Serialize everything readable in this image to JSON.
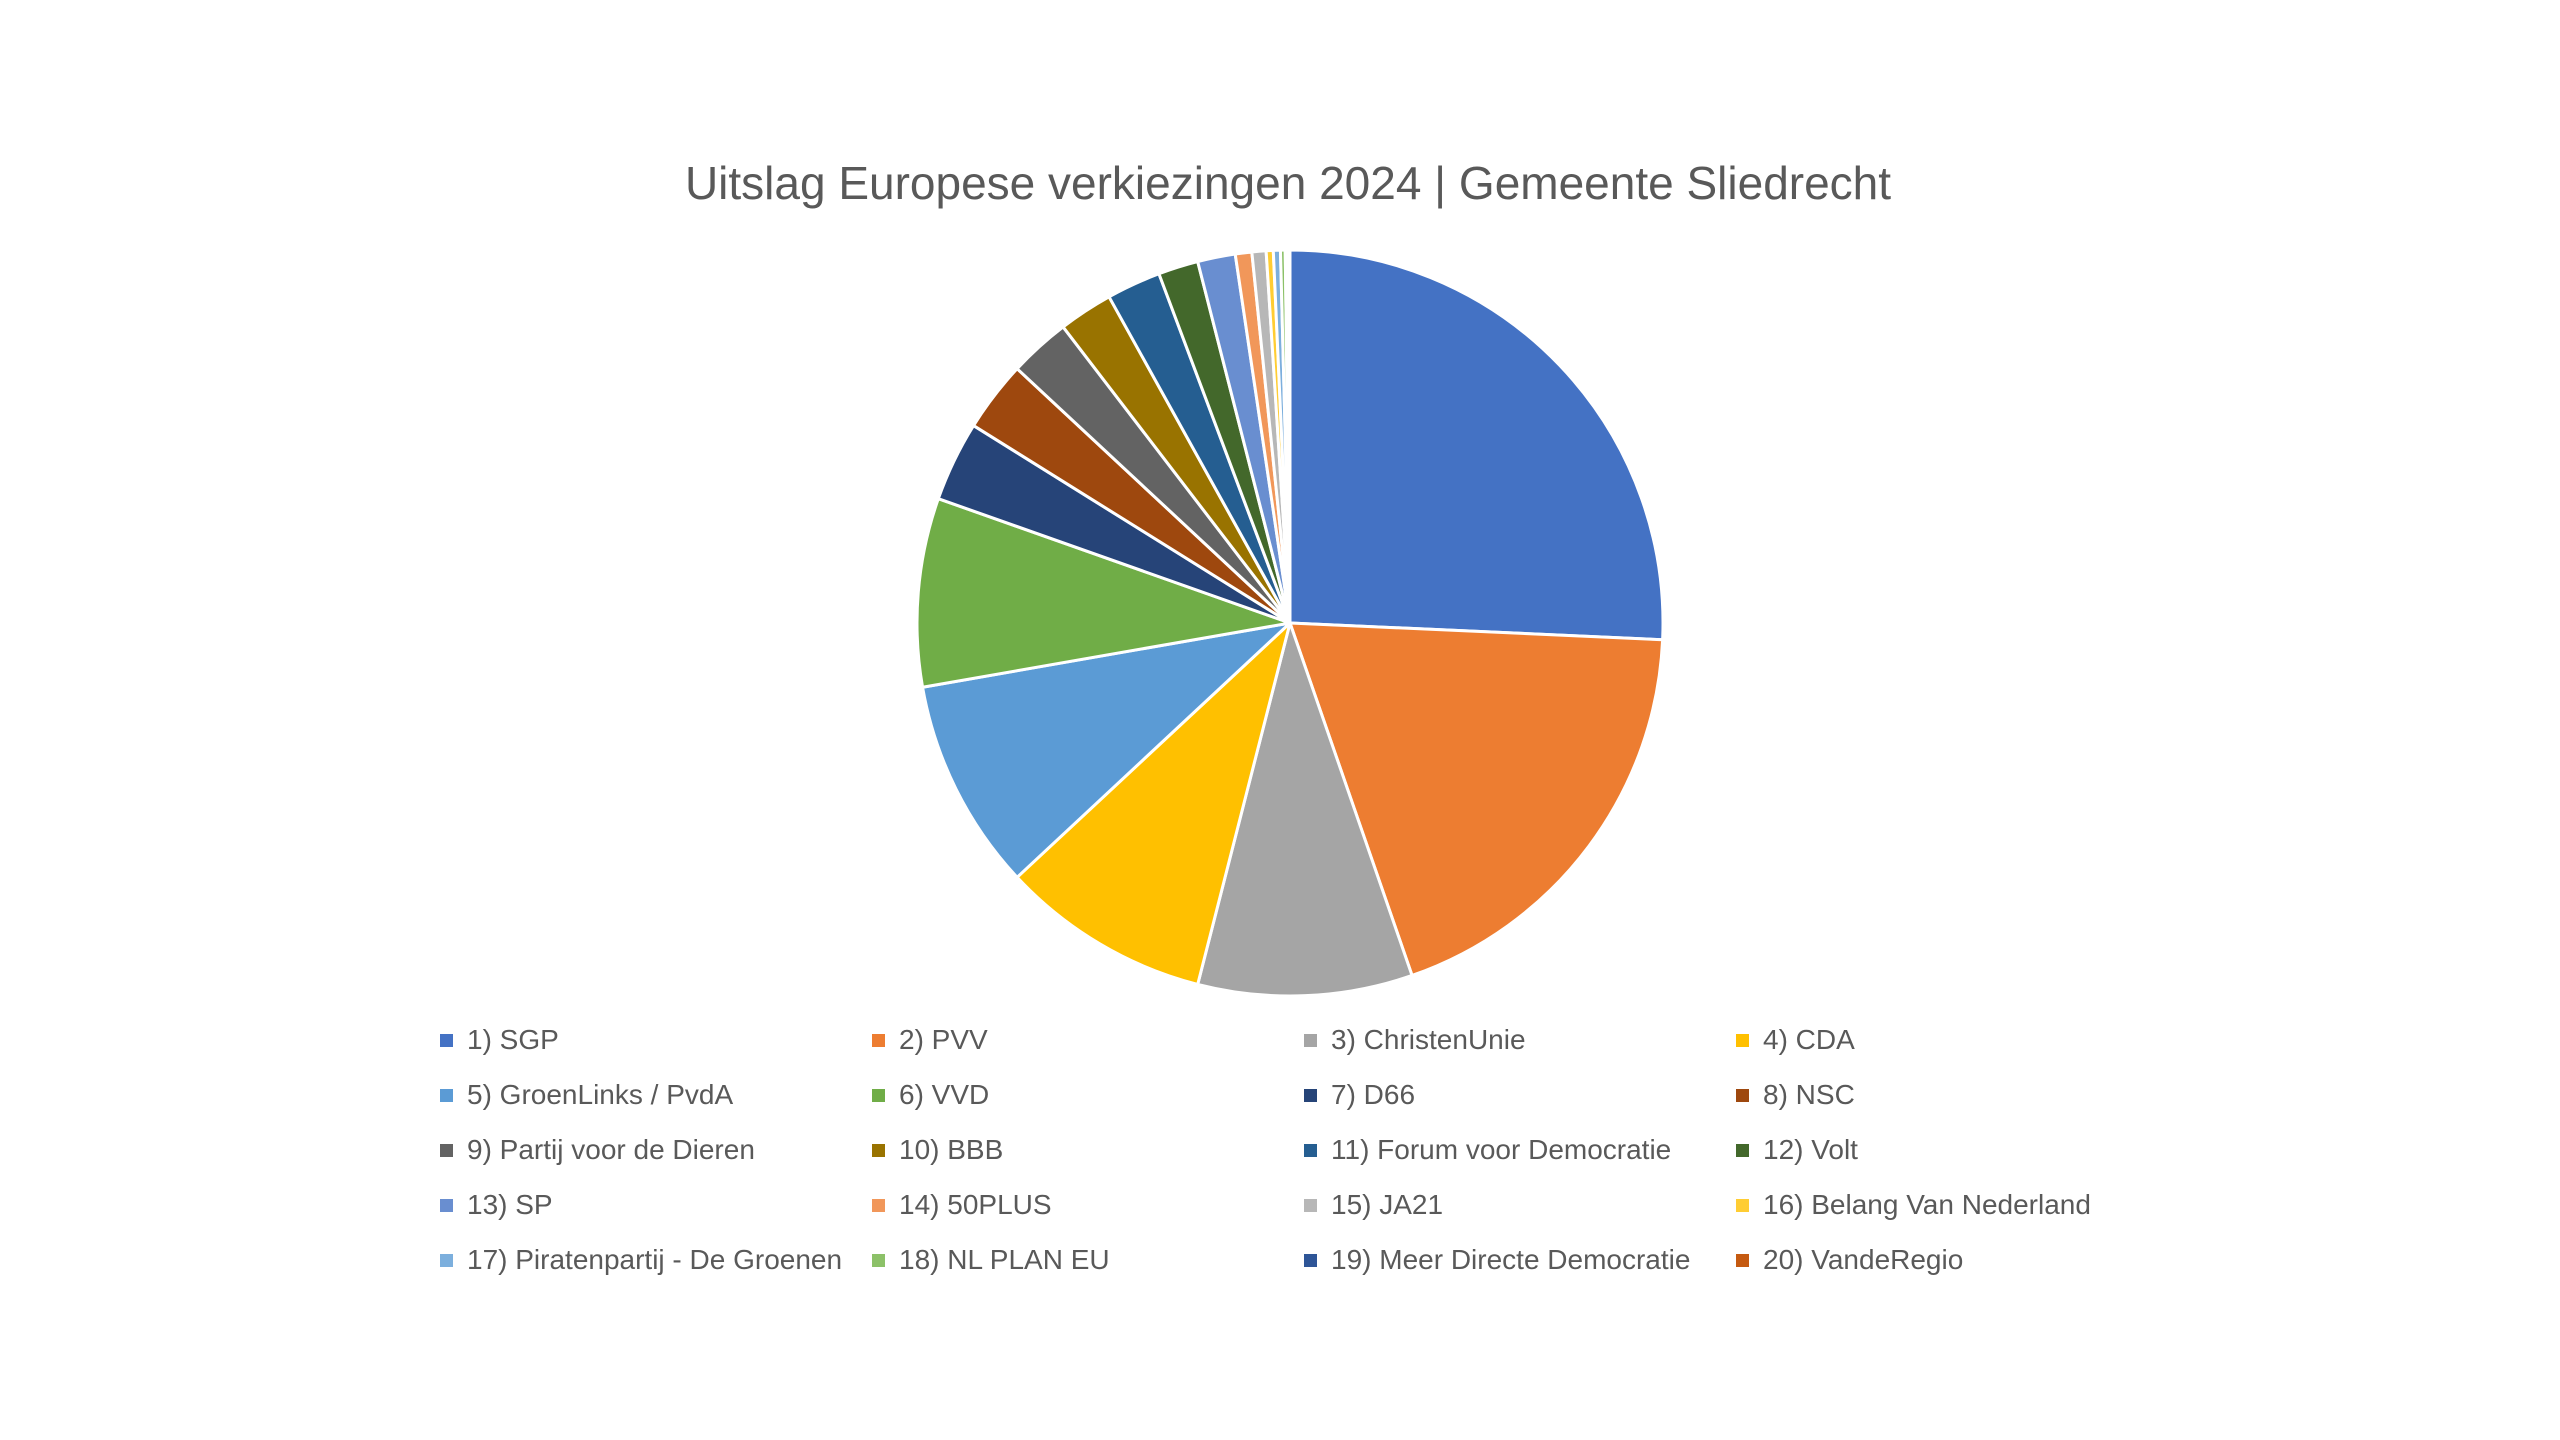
{
  "chart_data": {
    "type": "pie",
    "title": "Uitslag Europese verkiezingen 2024 | Gemeente Sliedrecht",
    "legend_position": "bottom",
    "series": [
      {
        "name": "1) SGP",
        "value": 25.2,
        "color": "#4472C4"
      },
      {
        "name": "2) PVV",
        "value": 18.6,
        "color": "#ED7D31"
      },
      {
        "name": "3) ChristenUnie",
        "value": 9.1,
        "color": "#A5A5A5"
      },
      {
        "name": "4) CDA",
        "value": 8.9,
        "color": "#FFC000"
      },
      {
        "name": "5) GroenLinks / PvdA",
        "value": 9.0,
        "color": "#5B9BD5"
      },
      {
        "name": "6) VVD",
        "value": 8.0,
        "color": "#70AD47"
      },
      {
        "name": "7) D66",
        "value": 3.4,
        "color": "#264478"
      },
      {
        "name": "8) NSC",
        "value": 3.0,
        "color": "#9E480E"
      },
      {
        "name": "9) Partij voor de Dieren",
        "value": 2.6,
        "color": "#636363"
      },
      {
        "name": "10) BBB",
        "value": 2.3,
        "color": "#997300"
      },
      {
        "name": "11) Forum voor Democratie",
        "value": 2.3,
        "color": "#255E91"
      },
      {
        "name": "12) Volt",
        "value": 1.7,
        "color": "#43682B"
      },
      {
        "name": "13) SP",
        "value": 1.6,
        "color": "#698ED0"
      },
      {
        "name": "14) 50PLUS",
        "value": 0.7,
        "color": "#F1975A"
      },
      {
        "name": "15) JA21",
        "value": 0.6,
        "color": "#B7B7B7"
      },
      {
        "name": "16) Belang Van Nederland",
        "value": 0.3,
        "color": "#FFCD33"
      },
      {
        "name": "17) Piratenpartij - De Groenen",
        "value": 0.3,
        "color": "#7CAFDD"
      },
      {
        "name": "18) NL PLAN EU",
        "value": 0.2,
        "color": "#8CC168"
      },
      {
        "name": "19) Meer Directe Democratie",
        "value": 0.1,
        "color": "#2E5597"
      },
      {
        "name": "20) VandeRegio",
        "value": 0.1,
        "color": "#C55A11"
      }
    ]
  }
}
